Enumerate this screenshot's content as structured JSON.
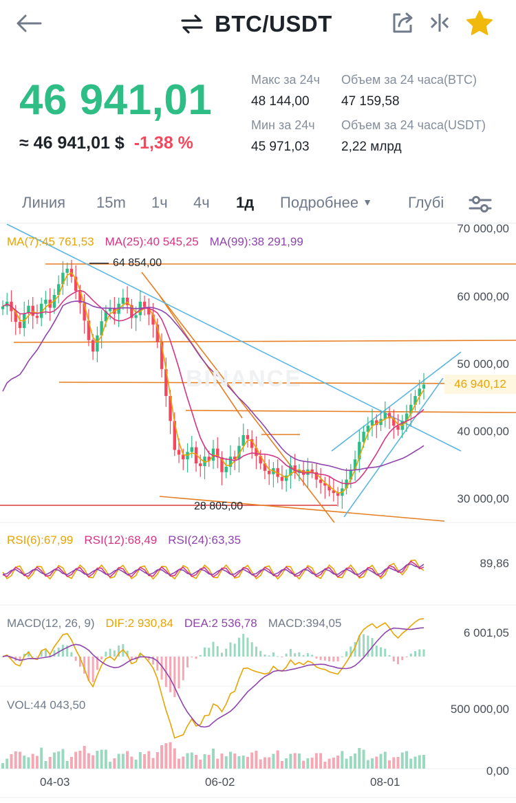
{
  "header": {
    "title": "BTC/USDT"
  },
  "ticker": {
    "last_price": "46 941,01",
    "approx_usd": "≈ 46 941,01 $",
    "change_pct": "-1,38 %",
    "high_label": "Макс за 24ч",
    "high_value": "48 144,00",
    "low_label": "Мин за 24ч",
    "low_value": "45 971,03",
    "vol_btc_label": "Объем за 24 часа(BTC)",
    "vol_btc_value": "47 159,58",
    "vol_usdt_label": "Объем за 24 часа(USDT)",
    "vol_usdt_value": "2,22 млрд"
  },
  "tabs": [
    "Линия",
    "15m",
    "1ч",
    "4ч",
    "1д",
    "Подробнее",
    "Глубі"
  ],
  "active_tab": "1д",
  "colors": {
    "up": "#2ebd85",
    "down": "#f6465d",
    "ma7": "#e8a400",
    "ma25": "#d63384",
    "ma99": "#8e44ad",
    "trend_orange": "#e67e22",
    "trend_blue": "#5bb5e0"
  },
  "chart": {
    "ma_legend": {
      "ma7": "MA(7):45 761,53",
      "ma25": "MA(25):40 545,25",
      "ma99": "MA(99):38 291,99"
    },
    "y_ticks": [
      "70 000,00",
      "60 000,00",
      "50 000,00",
      "40 000,00",
      "30 000,00"
    ],
    "current_price_tag": "46 940,12",
    "high_annotation": "64 854,00",
    "low_annotation": "28 805,00",
    "watermark": "BINANCE",
    "rsi_legend": {
      "rsi6": "RSI(6):67,99",
      "rsi12": "RSI(12):68,49",
      "rsi24": "RSI(24):63,35"
    },
    "rsi_tick": "89,86",
    "macd_legend": {
      "name": "MACD(12, 26, 9)",
      "dif": "DIF:2 930,84",
      "dea": "DEA:2 536,78",
      "macd": "MACD:394,05"
    },
    "macd_tick": "6 001,05",
    "vol_legend": "VOL:44 043,50",
    "vol_ticks": [
      "500 000,00",
      "0,00"
    ],
    "x_dates": [
      "04-03",
      "06-02",
      "08-01"
    ]
  },
  "chart_data": {
    "type": "candlestick",
    "price_ylim": [
      25000,
      70000
    ],
    "x_dates": [
      "04-03",
      "06-02",
      "08-01"
    ],
    "ma_last": {
      "MA(7)": 45761.53,
      "MA(25)": 40545.25,
      "MA(99)": 38291.99
    },
    "high": 64854.0,
    "low": 28805.0,
    "current": 46940.12,
    "close_series": [
      58500,
      59200,
      57800,
      56200,
      55300,
      57500,
      58600,
      57100,
      56800,
      58900,
      59500,
      58300,
      60200,
      61800,
      63500,
      64100,
      62900,
      60800,
      59000,
      56400,
      53500,
      51800,
      54200,
      56300,
      57800,
      58200,
      57400,
      58900,
      59800,
      58700,
      56800,
      57200,
      59200,
      58400,
      57300,
      55800,
      53200,
      49200,
      45200,
      41500,
      37200,
      36500,
      35800,
      36900,
      37600,
      35200,
      34800,
      36200,
      35600,
      37400,
      36100,
      33900,
      34700,
      36200,
      35800,
      37800,
      39400,
      38800,
      37500,
      36300,
      35200,
      34100,
      33600,
      34500,
      33200,
      32600,
      33400,
      34900,
      33800,
      34200,
      33500,
      34300,
      33900,
      32800,
      32300,
      31900,
      31200,
      30800,
      30400,
      31500,
      32800,
      34200,
      35800,
      38400,
      39900,
      40800,
      41600,
      40900,
      41800,
      42700,
      41900,
      40800,
      40200,
      41500,
      42600,
      43900,
      45200,
      46300,
      46900
    ]
  }
}
